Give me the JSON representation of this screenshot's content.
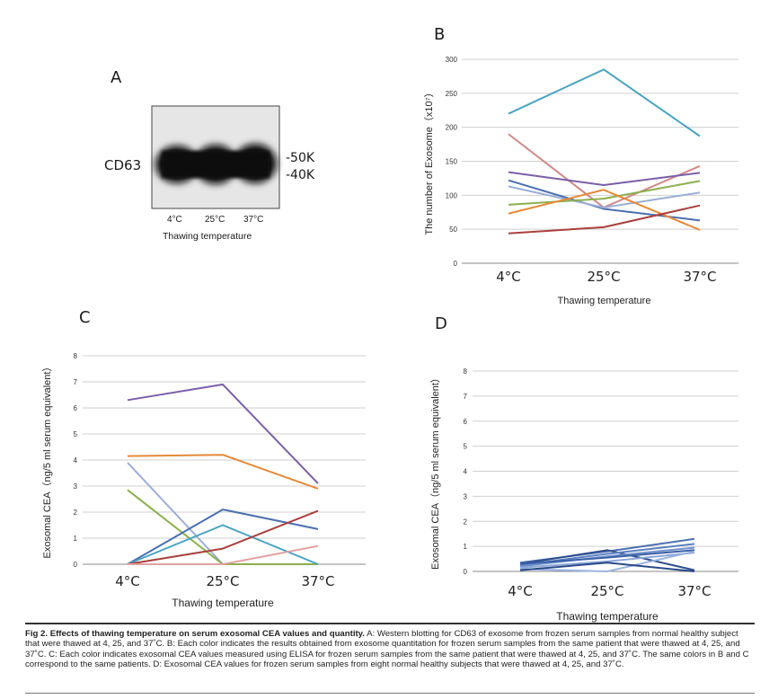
{
  "panels": {
    "a": {
      "letter": "A",
      "marker": "CD63",
      "size_hi": "-50K",
      "size_lo": "-40K",
      "lanes": [
        "4°C",
        "25°C",
        "37°C"
      ],
      "xlabel": "Thawing temperature"
    },
    "b": {
      "letter": "B"
    },
    "c": {
      "letter": "C"
    },
    "d": {
      "letter": "D"
    }
  },
  "chart_data": [
    {
      "id": "B",
      "type": "line",
      "categories": [
        "4°C",
        "25°C",
        "37°C"
      ],
      "ylabel": "The number of Exosome（x10⁷）",
      "xlabel": "Thawing temperature",
      "ylim": [
        0,
        300
      ],
      "yticks": [
        0,
        50,
        100,
        150,
        200,
        250,
        300
      ],
      "grid": true,
      "series": [
        {
          "color": "#4aa3c0",
          "values": [
            220,
            285,
            187
          ]
        },
        {
          "color": "#d08a88",
          "values": [
            190,
            82,
            143
          ]
        },
        {
          "color": "#7a5fa8",
          "values": [
            134,
            115,
            133
          ]
        },
        {
          "color": "#4a70b0",
          "values": [
            122,
            80,
            63
          ]
        },
        {
          "color": "#9aaed6",
          "values": [
            113,
            82,
            104
          ]
        },
        {
          "color": "#8aaf4e",
          "values": [
            86,
            95,
            121
          ]
        },
        {
          "color": "#e58a3a",
          "values": [
            73,
            108,
            49
          ]
        },
        {
          "color": "#a8403c",
          "values": [
            44,
            53,
            85
          ]
        }
      ]
    },
    {
      "id": "C",
      "type": "line",
      "categories": [
        "4°C",
        "25°C",
        "37°C"
      ],
      "ylabel": "Exosomal CEA（ng/5 ml serum equivalent）",
      "xlabel": "Thawing temperature",
      "ylim": [
        0,
        8
      ],
      "yticks": [
        0,
        1,
        2,
        3,
        4,
        5,
        6,
        7,
        8
      ],
      "grid": true,
      "series": [
        {
          "color": "#7a5fa8",
          "values": [
            6.3,
            6.9,
            3.1
          ]
        },
        {
          "color": "#e58a3a",
          "values": [
            4.15,
            4.2,
            2.9
          ]
        },
        {
          "color": "#9aaed6",
          "values": [
            3.9,
            0.0,
            0.0
          ]
        },
        {
          "color": "#8aaf4e",
          "values": [
            2.85,
            0.0,
            0.0
          ]
        },
        {
          "color": "#4a70b0",
          "values": [
            0.0,
            2.1,
            1.35
          ]
        },
        {
          "color": "#4aa3c0",
          "values": [
            0.0,
            1.5,
            0.0
          ]
        },
        {
          "color": "#a8403c",
          "values": [
            0.0,
            0.6,
            2.05
          ]
        },
        {
          "color": "#e0a0a0",
          "values": [
            0.0,
            0.0,
            0.7
          ]
        }
      ]
    },
    {
      "id": "D",
      "type": "line",
      "categories": [
        "4°C",
        "25°C",
        "37°C"
      ],
      "ylabel": "Exosomal CEA（ng/5 ml serum equivalent）",
      "xlabel": "Thawing temperature",
      "ylim": [
        0,
        8
      ],
      "yticks": [
        0,
        1,
        2,
        3,
        4,
        5,
        6,
        7,
        8
      ],
      "grid": true,
      "series": [
        {
          "color": "#4a70b0",
          "values": [
            0.35,
            0.8,
            1.3
          ]
        },
        {
          "color": "#2f4f8f",
          "values": [
            0.3,
            0.85,
            0.05
          ]
        },
        {
          "color": "#5a80c0",
          "values": [
            0.25,
            0.7,
            1.1
          ]
        },
        {
          "color": "#6f90c8",
          "values": [
            0.2,
            0.6,
            0.95
          ]
        },
        {
          "color": "#3a60a8",
          "values": [
            0.3,
            0.55,
            0.85
          ]
        },
        {
          "color": "#8aa6d8",
          "values": [
            0.15,
            0.4,
            0.75
          ]
        },
        {
          "color": "#9ab4e0",
          "values": [
            0.1,
            0.0,
            0.8
          ]
        },
        {
          "color": "#2a4a88",
          "values": [
            0.05,
            0.35,
            0.0
          ]
        }
      ]
    }
  ],
  "caption": {
    "title": "Fig 2. Effects of thawing temperature on serum exosomal CEA values and quantity.",
    "body": " A: Western blotting for CD63 of exosome from frozen serum samples from normal healthy subject that were thawed at 4, 25, and 37˚C. B: Each color indicates the results obtained from exosome quantitation for frozen serum samples from the same patient that were thawed at 4, 25, and 37˚C. C: Each color indicates exosomal CEA values measured using ELISA for frozen serum samples from the same patient that were thawed at 4, 25, and 37˚C. The same colors in B and C correspond to the same patients. D: Exosomal CEA values for frozen serum samples from eight normal healthy subjects that were thawed at 4, 25, and 37˚C."
  }
}
